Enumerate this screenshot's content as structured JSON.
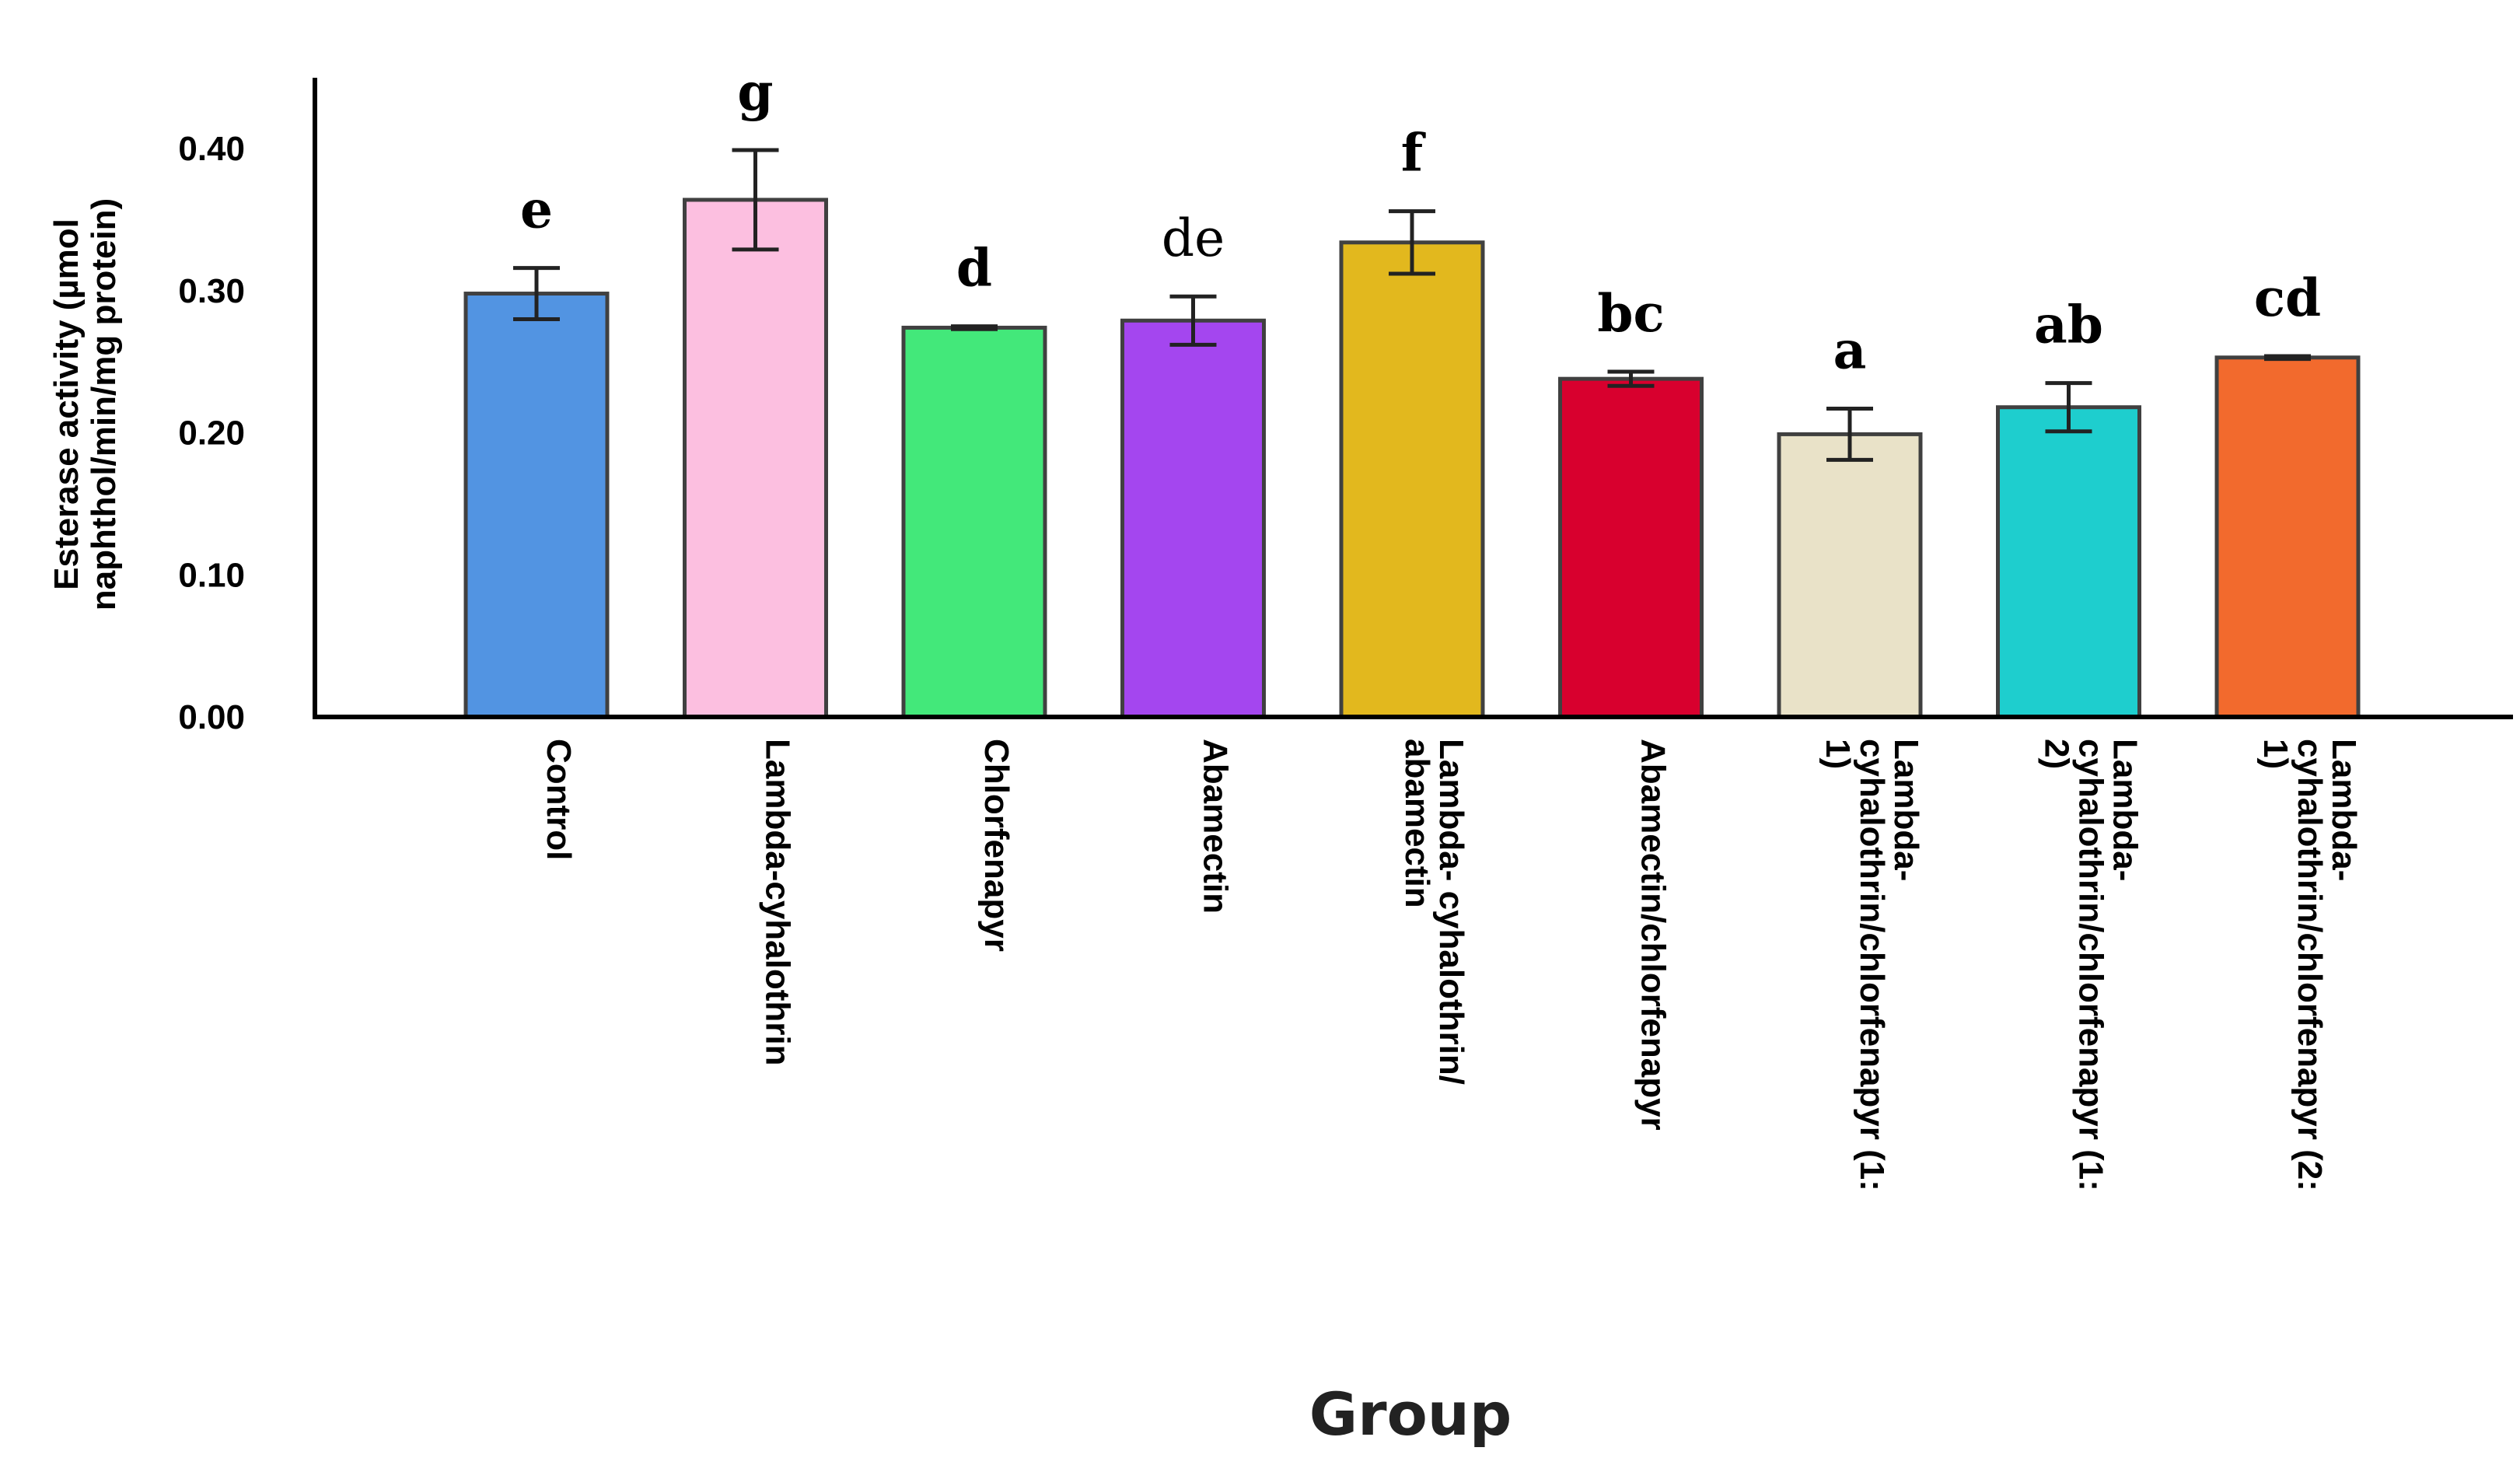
{
  "chart_data": {
    "type": "bar",
    "title": "",
    "xlabel": "Group",
    "ylabel_lines": [
      "Esterase activity (µmol",
      "naphthol/min/mg protein)"
    ],
    "ylim": [
      0,
      0.45
    ],
    "yticks": [
      "0.00",
      "0.10",
      "0.20",
      "0.30",
      "0.40"
    ],
    "ytick_values": [
      0.0,
      0.1,
      0.2,
      0.3,
      0.4
    ],
    "categories": [
      "Control",
      "Lambda-cyhalothrin",
      "Chlorfenapyr",
      "Abamectin",
      "Lambda- cyhalothrin/ abamectin",
      "Abamectin/chlorfenapyr",
      "Lambda- cyhalothrin/chlorfenapyr (1: 1)",
      "Lambda- cyhalothrin/chlorfenapyr (1: 2)",
      "Lambda- cyhalothrin/chlorfenapyr (2: 1)"
    ],
    "category_label_lines": [
      [
        "Control"
      ],
      [
        "Lambda-cyhalothrin"
      ],
      [
        "Chlorfenapyr"
      ],
      [
        "Abamectin"
      ],
      [
        "Lambda- cyhalothrin/",
        "abamectin"
      ],
      [
        "Abamectin/chlorfenapyr"
      ],
      [
        "Lambda-",
        "cyhalothrin/chlorfenapyr (1:",
        "1)"
      ],
      [
        "Lambda-",
        "cyhalothrin/chlorfenapyr (1:",
        "2)"
      ],
      [
        "Lambda-",
        "cyhalothrin/chlorfenapyr (2:",
        "1)"
      ]
    ],
    "values": [
      0.298,
      0.364,
      0.274,
      0.279,
      0.334,
      0.238,
      0.199,
      0.218,
      0.253
    ],
    "errors": [
      0.018,
      0.035,
      0.001,
      0.017,
      0.022,
      0.005,
      0.018,
      0.017,
      0.001
    ],
    "significance": [
      "e",
      "g",
      "d",
      "de",
      "f",
      "bc",
      "a",
      "ab",
      "cd"
    ],
    "significance_bold": [
      true,
      true,
      true,
      false,
      true,
      true,
      true,
      true,
      true
    ],
    "colors": [
      "#5294e2",
      "#fcbfe0",
      "#43e87a",
      "#a446ef",
      "#e2b81e",
      "#d8002e",
      "#e9e2c8",
      "#1ecece",
      "#f26a2d"
    ],
    "outline_color": "#404040",
    "grid": false,
    "legend": "none"
  }
}
